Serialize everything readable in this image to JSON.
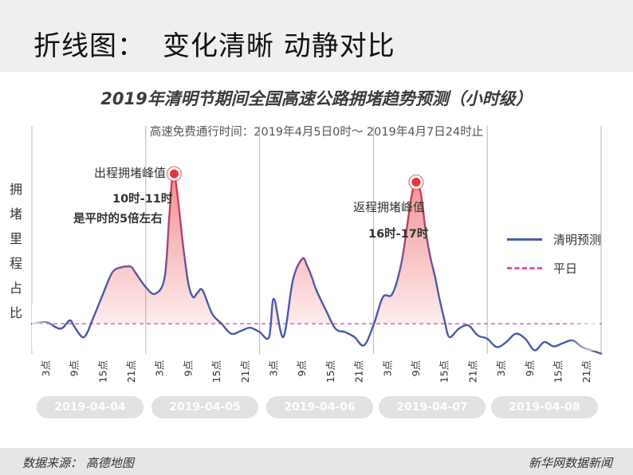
{
  "slide": {
    "title": "折线图：",
    "title_2": "变化清晰 动静对比"
  },
  "chart_data": {
    "type": "line",
    "title": "2019年清明节期间全国高速公路拥堵趋势预测（小时级）",
    "subtitle": "高速免费通行时间：2019年4月5日0时～ 2019年4月7日24时止",
    "ylabel": [
      "拥",
      "堵",
      "里",
      "程",
      "占",
      "比"
    ],
    "x_tick_labels": [
      "3点",
      "9点",
      "15点",
      "21点",
      "3点",
      "9点",
      "15点",
      "21点",
      "3点",
      "9点",
      "15点",
      "21点",
      "3点",
      "9点",
      "15点",
      "21点",
      "3点",
      "9点",
      "15点",
      "21点"
    ],
    "dates": [
      "2019-04-04",
      "2019-04-05",
      "2019-04-06",
      "2019-04-07",
      "2019-04-08"
    ],
    "legend": [
      "清明预测",
      "平日"
    ],
    "colors": {
      "forecast": "#4b5aa7",
      "normal": "#e94fa8",
      "peak": "#e8333a"
    },
    "normal_level": 1.0,
    "ylim": [
      0,
      6
    ],
    "series": [
      {
        "name": "清明预测",
        "x": [
          0,
          3,
          6,
          8,
          9,
          11,
          13,
          15,
          17,
          19,
          20,
          21,
          22,
          24,
          26,
          28,
          29,
          30,
          32,
          33,
          34,
          35,
          36,
          38,
          40,
          42,
          44,
          46,
          48,
          50,
          51,
          53,
          55,
          57,
          58,
          59,
          60,
          62,
          64,
          66,
          68,
          70,
          72,
          74,
          76,
          78,
          80,
          81,
          82,
          83,
          84,
          85,
          86,
          87,
          88,
          90,
          92,
          94,
          96,
          98,
          100,
          102,
          104,
          106,
          108,
          110,
          112,
          114,
          116,
          118,
          120
        ],
        "y": [
          1.0,
          1.05,
          0.85,
          1.1,
          0.9,
          0.6,
          1.2,
          1.9,
          2.55,
          2.7,
          2.72,
          2.7,
          2.5,
          2.1,
          1.9,
          2.4,
          4.3,
          5.5,
          3.2,
          2.2,
          1.8,
          1.95,
          2.0,
          1.3,
          1.0,
          0.7,
          0.78,
          0.88,
          0.75,
          0.6,
          1.75,
          0.6,
          2.3,
          2.95,
          2.75,
          2.4,
          2.0,
          1.4,
          0.85,
          0.75,
          0.6,
          0.35,
          0.95,
          1.8,
          1.9,
          2.9,
          4.8,
          5.25,
          4.9,
          3.8,
          3.0,
          2.4,
          1.7,
          1.1,
          0.6,
          0.85,
          0.95,
          0.65,
          0.55,
          0.3,
          0.45,
          0.7,
          0.55,
          0.2,
          0.45,
          0.32,
          0.42,
          0.5,
          0.3,
          0.2,
          0.1
        ]
      }
    ],
    "annotations": [
      {
        "title": "出程拥堵峰值",
        "time": "10时-11时",
        "note": "是平时的5倍左右"
      },
      {
        "title": "返程拥堵峰值",
        "time": "16时-17时"
      }
    ]
  },
  "footer": {
    "source": "数据来源：  高德地图",
    "brand": "新华网数据新闻"
  }
}
